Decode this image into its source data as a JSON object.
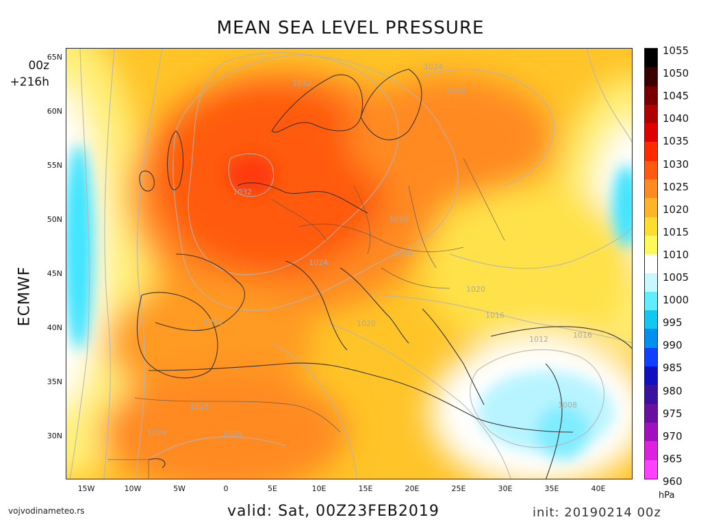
{
  "title": "MEAN SEA LEVEL PRESSURE",
  "run": {
    "hour": "00z",
    "lead": "+216h"
  },
  "model": "ECMWF",
  "website": "vojvodinameteo.rs",
  "valid": "valid: Sat, 00Z23FEB2019",
  "init": "init: 20190214 00z",
  "unit": "hPa",
  "lat_labels": [
    "65N",
    "60N",
    "55N",
    "50N",
    "45N",
    "40N",
    "35N",
    "30N"
  ],
  "lon_labels": [
    "15W",
    "10W",
    "5W",
    "0",
    "5E",
    "10E",
    "15E",
    "20E",
    "25E",
    "30E",
    "35E",
    "40E"
  ],
  "colorbar": {
    "labels": [
      "1055",
      "1050",
      "1045",
      "1040",
      "1035",
      "1030",
      "1025",
      "1020",
      "1015",
      "1010",
      "1005",
      "1000",
      "995",
      "990",
      "985",
      "980",
      "975",
      "970",
      "965",
      "960"
    ],
    "colors": [
      "#000000",
      "#3a0000",
      "#7a0000",
      "#b00000",
      "#e00000",
      "#ff2a00",
      "#ff5a10",
      "#ff8a20",
      "#ffb428",
      "#ffdc30",
      "#fff85a",
      "#ffffff",
      "#c8f8ff",
      "#60eeff",
      "#10c8f0",
      "#0090f0",
      "#1040ff",
      "#1010c0",
      "#3a10a0",
      "#6a10a0",
      "#a010c0",
      "#e020e0",
      "#ff40ff"
    ]
  },
  "isobar_labels": [
    {
      "text": "1032"
    },
    {
      "text": "1032"
    },
    {
      "text": "1024"
    },
    {
      "text": "1028"
    },
    {
      "text": "1028"
    },
    {
      "text": "1024"
    },
    {
      "text": "1024"
    },
    {
      "text": "1028"
    },
    {
      "text": "1020"
    },
    {
      "text": "1020"
    },
    {
      "text": "1016"
    },
    {
      "text": "1012"
    },
    {
      "text": "1016"
    },
    {
      "text": "1028"
    },
    {
      "text": "1028"
    },
    {
      "text": "1024"
    },
    {
      "text": "1008"
    }
  ]
}
